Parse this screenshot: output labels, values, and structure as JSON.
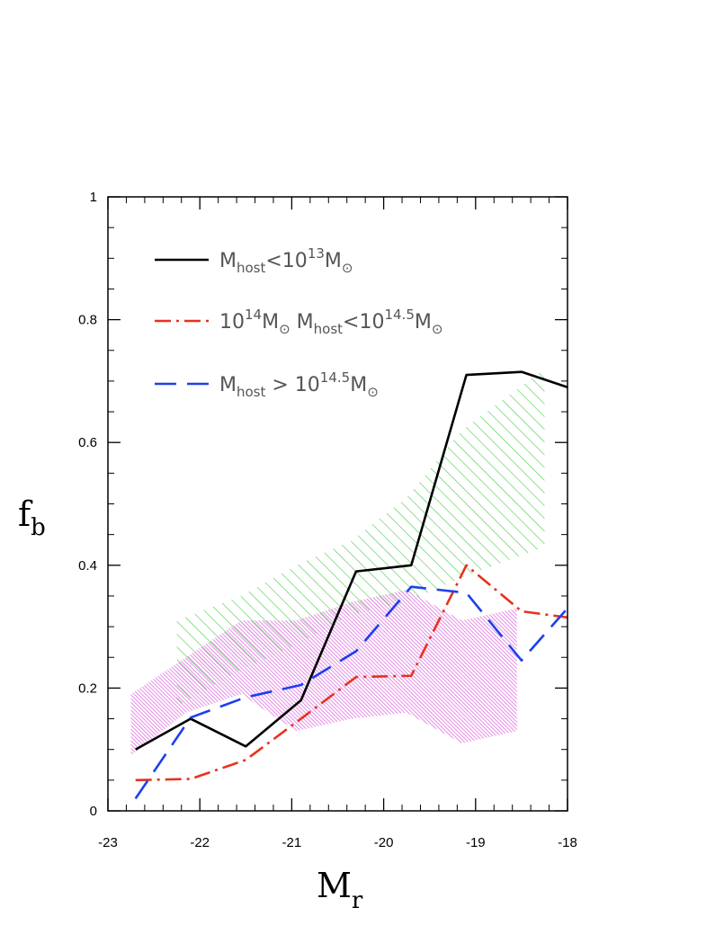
{
  "chart_data": {
    "type": "line",
    "xlabel": "M",
    "xlabel_sub": "r",
    "ylabel": "f",
    "ylabel_sub": "b",
    "xlim": [
      -23,
      -18
    ],
    "ylim": [
      0,
      1
    ],
    "x_ticks": [
      -23,
      -22,
      -21,
      -20,
      -19,
      -18
    ],
    "x_tick_labels": [
      "-23",
      "-22",
      "-21",
      "-20",
      "-19",
      "-18"
    ],
    "y_ticks": [
      0,
      0.2,
      0.4,
      0.6,
      0.8,
      1
    ],
    "y_tick_labels": [
      "0",
      "0.2",
      "0.4",
      "0.6",
      "0.8",
      "1"
    ],
    "grid": false,
    "legend_position": "top-left",
    "series": [
      {
        "legend_parts": [
          {
            "t": "M"
          },
          {
            "t": "host",
            "sub": true
          },
          {
            "t": "<10"
          },
          {
            "t": "13",
            "sup": true
          },
          {
            "t": "M"
          },
          {
            "t": "⊙",
            "sub": true
          }
        ],
        "color": "#000000",
        "style": "solid",
        "x": [
          -22.7,
          -22.1,
          -21.5,
          -20.9,
          -20.3,
          -19.7,
          -19.1,
          -18.5,
          -18.0
        ],
        "y": [
          0.1,
          0.15,
          0.105,
          0.18,
          0.39,
          0.4,
          0.71,
          0.715,
          0.69
        ]
      },
      {
        "legend_parts": [
          {
            "t": "10"
          },
          {
            "t": "14",
            "sup": true
          },
          {
            "t": "M"
          },
          {
            "t": "⊙",
            "sub": true
          },
          {
            "t": "  M"
          },
          {
            "t": "host",
            "sub": true
          },
          {
            "t": "<10"
          },
          {
            "t": "14.5",
            "sup": true
          },
          {
            "t": "M"
          },
          {
            "t": "⊙",
            "sub": true
          }
        ],
        "color": "#e8311c",
        "style": "dashdot",
        "x": [
          -22.7,
          -22.1,
          -21.5,
          -20.9,
          -20.3,
          -19.7,
          -19.1,
          -18.5,
          -18.0
        ],
        "y": [
          0.05,
          0.052,
          0.083,
          0.15,
          0.218,
          0.22,
          0.4,
          0.325,
          0.315
        ]
      },
      {
        "legend_parts": [
          {
            "t": "M"
          },
          {
            "t": "host",
            "sub": true
          },
          {
            "t": "  >  10"
          },
          {
            "t": "14.5",
            "sup": true
          },
          {
            "t": "M"
          },
          {
            "t": "⊙",
            "sub": true
          }
        ],
        "color": "#1c3ff0",
        "style": "dashed",
        "x": [
          -22.7,
          -22.1,
          -21.5,
          -20.9,
          -20.3,
          -19.7,
          -19.1,
          -18.5,
          -18.0
        ],
        "y": [
          0.02,
          0.152,
          0.185,
          0.205,
          0.26,
          0.365,
          0.355,
          0.245,
          0.33
        ]
      }
    ],
    "bands": [
      {
        "color": "#44cc44",
        "pattern": "diagonal-hatch",
        "x": [
          -22.25,
          -21.55,
          -20.95,
          -20.35,
          -19.75,
          -19.15,
          -18.25
        ],
        "lower": [
          0.17,
          0.23,
          0.27,
          0.32,
          0.34,
          0.38,
          0.43
        ],
        "upper": [
          0.31,
          0.35,
          0.4,
          0.44,
          0.51,
          0.62,
          0.72
        ]
      },
      {
        "color": "#e070e0",
        "pattern": "fine-hatch",
        "x": [
          -22.75,
          -22.15,
          -21.55,
          -20.95,
          -20.35,
          -19.75,
          -19.15,
          -18.55
        ],
        "lower": [
          0.09,
          0.16,
          0.19,
          0.13,
          0.15,
          0.16,
          0.11,
          0.13
        ],
        "upper": [
          0.19,
          0.25,
          0.31,
          0.31,
          0.34,
          0.36,
          0.31,
          0.33
        ]
      }
    ]
  }
}
